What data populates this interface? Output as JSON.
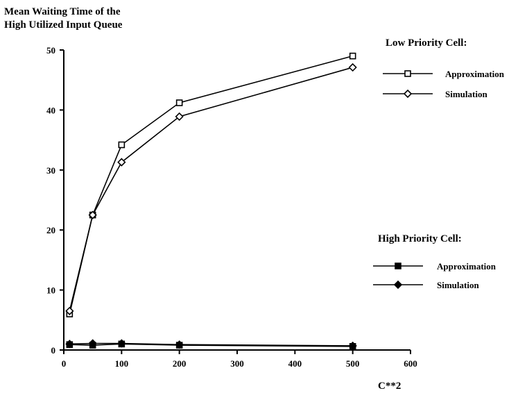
{
  "chart_data": {
    "type": "line",
    "title": "Mean Waiting Time of the High Utilized Input Queue",
    "title_lines": [
      "Mean Waiting Time of the",
      "High Utilized Input Queue"
    ],
    "xlabel": "C**2",
    "ylabel": "",
    "xlim": [
      0,
      600
    ],
    "ylim": [
      0,
      50
    ],
    "xticks": [
      0,
      100,
      200,
      300,
      400,
      500,
      600
    ],
    "yticks": [
      0,
      10,
      20,
      30,
      40,
      50
    ],
    "grid": false,
    "legend_groups": [
      {
        "title": "Low Priority Cell:",
        "position": "top-right",
        "entries": [
          {
            "label": "Approximation",
            "marker": "open-square"
          },
          {
            "label": "Simulation",
            "marker": "open-diamond"
          }
        ]
      },
      {
        "title": "High Priority Cell:",
        "position": "middle-right",
        "entries": [
          {
            "label": "Approximation",
            "marker": "filled-square"
          },
          {
            "label": "Simulation",
            "marker": "filled-diamond"
          }
        ]
      }
    ],
    "series": [
      {
        "name": "Low Priority Cell: Approximation",
        "marker": "open-square",
        "x": [
          10,
          50,
          100,
          200,
          500
        ],
        "y": [
          6.0,
          22.5,
          34.2,
          41.2,
          49.0
        ]
      },
      {
        "name": "Low Priority Cell: Simulation",
        "marker": "open-diamond",
        "x": [
          10,
          50,
          100,
          200,
          500
        ],
        "y": [
          6.5,
          22.5,
          31.3,
          38.9,
          47.1
        ]
      },
      {
        "name": "High Priority Cell: Approximation",
        "marker": "filled-square",
        "x": [
          10,
          50,
          100,
          200,
          500
        ],
        "y": [
          0.9,
          0.8,
          1.0,
          0.8,
          0.6
        ]
      },
      {
        "name": "High Priority Cell: Simulation",
        "marker": "filled-diamond",
        "x": [
          10,
          50,
          100,
          200,
          500
        ],
        "y": [
          1.0,
          1.1,
          1.1,
          0.9,
          0.7
        ]
      }
    ]
  }
}
